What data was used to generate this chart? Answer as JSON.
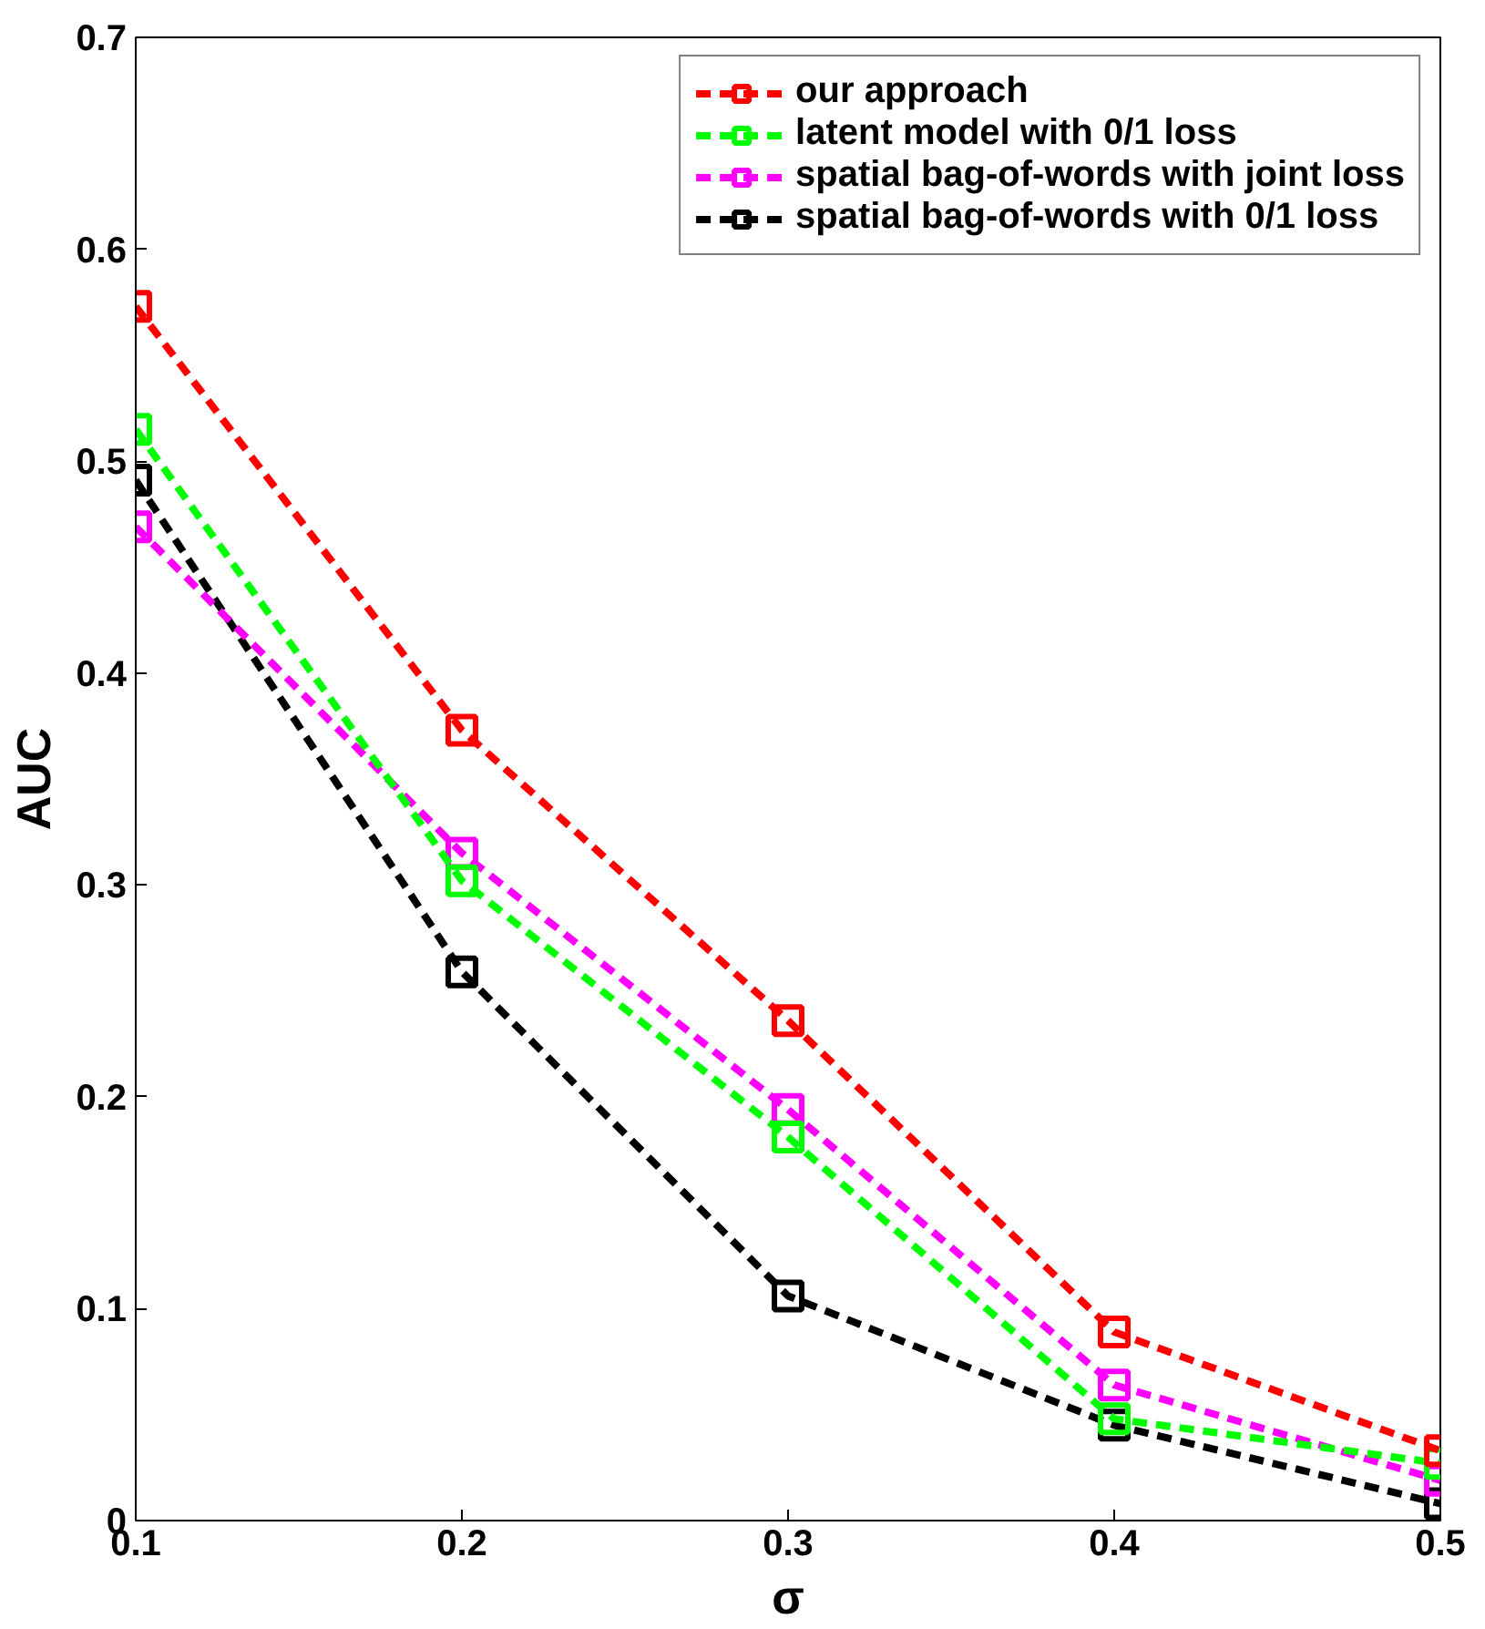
{
  "chart_data": {
    "type": "line",
    "xlabel": "σ",
    "ylabel": "AUC",
    "x": [
      0.1,
      0.2,
      0.3,
      0.4,
      0.5
    ],
    "series": [
      {
        "name": "our approach",
        "color": "#ff0000",
        "values": [
          0.573,
          0.373,
          0.236,
          0.089,
          0.033
        ]
      },
      {
        "name": "latent model with 0/1 loss",
        "color": "#00ff00",
        "values": [
          0.515,
          0.302,
          0.181,
          0.048,
          0.027
        ]
      },
      {
        "name": "spatial bag-of-words with joint loss",
        "color": "#ff00ff",
        "values": [
          0.469,
          0.315,
          0.194,
          0.064,
          0.019
        ]
      },
      {
        "name": "spatial bag-of-words with 0/1 loss",
        "color": "#000000",
        "values": [
          0.491,
          0.259,
          0.106,
          0.045,
          0.008
        ]
      }
    ],
    "xlim": [
      0.1,
      0.5
    ],
    "ylim": [
      0,
      0.7
    ],
    "xticks": [
      0.1,
      0.2,
      0.3,
      0.4,
      0.5
    ],
    "yticks": [
      0,
      0.1,
      0.2,
      0.3,
      0.4,
      0.5,
      0.6,
      0.7
    ],
    "marker": "square",
    "line_style": "dashed",
    "legend": "top right",
    "grid": false
  }
}
